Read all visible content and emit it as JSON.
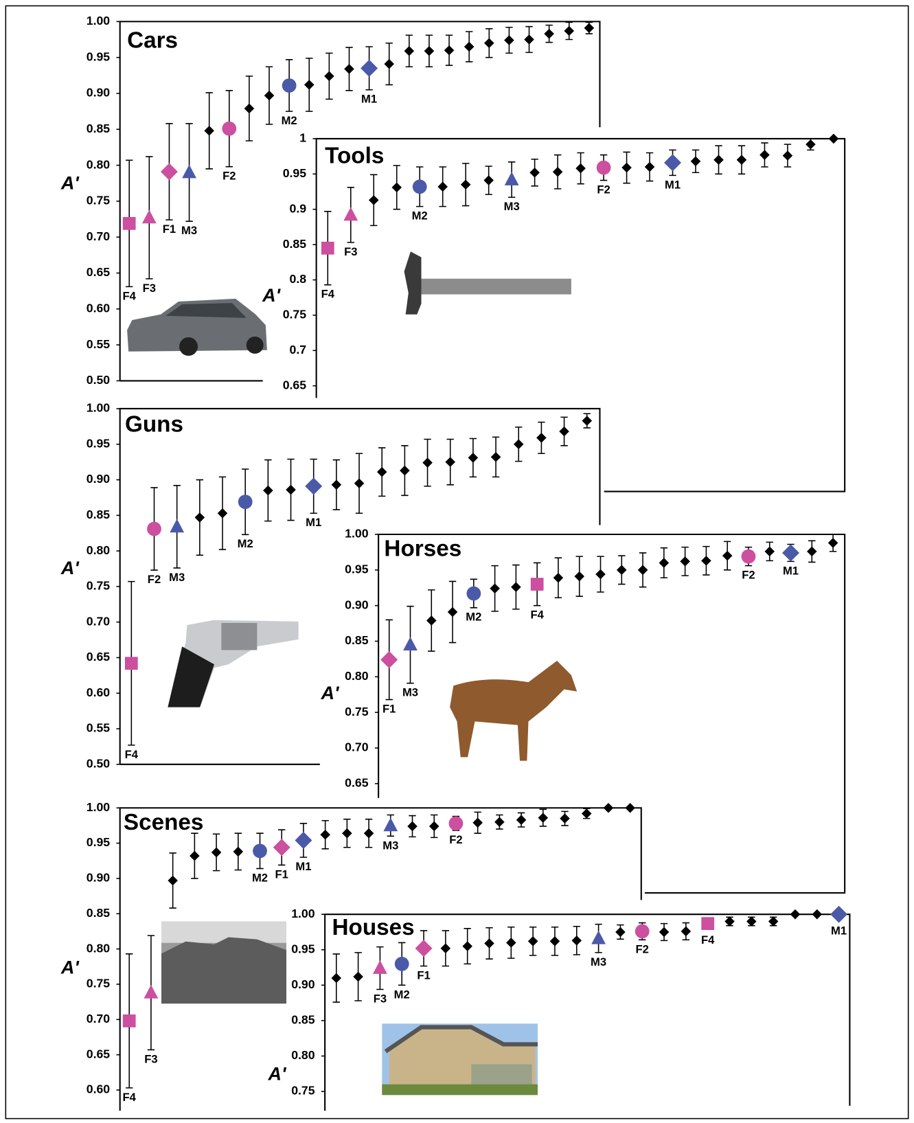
{
  "chart_data": [
    {
      "type": "scatter",
      "title": "Cars",
      "y_label": "A'",
      "marker_color": "#000000",
      "ylim": [
        0.5,
        1.0
      ],
      "yticks": [
        {
          "value": 1.0,
          "label": "1.00"
        },
        {
          "value": 0.95,
          "label": "0.95"
        },
        {
          "value": 0.9,
          "label": "0.90"
        },
        {
          "value": 0.85,
          "label": "0.85"
        },
        {
          "value": 0.8,
          "label": "0.80"
        },
        {
          "value": 0.75,
          "label": "0.75"
        },
        {
          "value": 0.7,
          "label": "0.70"
        },
        {
          "value": 0.65,
          "label": "0.65"
        },
        {
          "value": 0.6,
          "label": "0.60"
        },
        {
          "value": 0.55,
          "label": "0.55"
        },
        {
          "value": 0.5,
          "label": "0.50"
        }
      ],
      "values": [
        0.719,
        0.727,
        0.791,
        0.79,
        0.848,
        0.851,
        0.879,
        0.897,
        0.911,
        0.912,
        0.924,
        0.934,
        0.935,
        0.941,
        0.959,
        0.959,
        0.96,
        0.965,
        0.97,
        0.974,
        0.975,
        0.983,
        0.987,
        0.991
      ],
      "errors": [
        0.088,
        0.085,
        0.067,
        0.068,
        0.053,
        0.053,
        0.045,
        0.04,
        0.036,
        0.037,
        0.032,
        0.03,
        0.03,
        0.029,
        0.022,
        0.022,
        0.021,
        0.021,
        0.02,
        0.018,
        0.018,
        0.012,
        0.012,
        0.008
      ],
      "highlights": [
        {
          "index": 0,
          "label": "F4",
          "marker": "square",
          "color": "#cc4fa0"
        },
        {
          "index": 1,
          "label": "F3",
          "marker": "triangle",
          "color": "#cc4fa0"
        },
        {
          "index": 2,
          "label": "F1",
          "marker": "diamond",
          "color": "#cc4fa0"
        },
        {
          "index": 3,
          "label": "M3",
          "marker": "triangle",
          "color": "#4a5aa8"
        },
        {
          "index": 5,
          "label": "F2",
          "marker": "circle",
          "color": "#cc4fa0"
        },
        {
          "index": 8,
          "label": "M2",
          "marker": "circle",
          "color": "#4a5aa8"
        },
        {
          "index": 12,
          "label": "M1",
          "marker": "diamond",
          "color": "#4a5aa8"
        }
      ]
    },
    {
      "type": "scatter",
      "title": "Tools",
      "y_label": "A'",
      "marker_color": "#000000",
      "ylim": [
        0.65,
        1.0
      ],
      "yticks": [
        1,
        0.95,
        0.9,
        0.85,
        0.8,
        0.75,
        0.7,
        0.65
      ],
      "values": [
        0.845,
        0.892,
        0.913,
        0.931,
        0.932,
        0.932,
        0.935,
        0.941,
        0.942,
        0.952,
        0.953,
        0.958,
        0.959,
        0.959,
        0.96,
        0.966,
        0.968,
        0.97,
        0.97,
        0.977,
        0.976,
        0.992,
        1.0
      ],
      "errors": [
        0.052,
        0.039,
        0.036,
        0.031,
        0.028,
        0.028,
        0.03,
        0.02,
        0.025,
        0.019,
        0.024,
        0.022,
        0.018,
        0.022,
        0.02,
        0.018,
        0.016,
        0.02,
        0.02,
        0.017,
        0.016,
        0.008,
        0
      ],
      "highlights": [
        {
          "index": 0,
          "label": "F4",
          "marker": "square",
          "color": "#cc4fa0"
        },
        {
          "index": 1,
          "label": "F3",
          "marker": "triangle",
          "color": "#cc4fa0"
        },
        {
          "index": 4,
          "label": "M2",
          "marker": "circle",
          "color": "#4a5aa8"
        },
        {
          "index": 8,
          "label": "M3",
          "marker": "triangle",
          "color": "#4a5aa8"
        },
        {
          "index": 12,
          "label": "F2",
          "marker": "circle",
          "color": "#cc4fa0"
        },
        {
          "index": 15,
          "label": "M1",
          "marker": "diamond",
          "color": "#4a5aa8"
        }
      ]
    },
    {
      "type": "scatter",
      "title": "Guns",
      "y_label": "A'",
      "marker_color": "#000000",
      "ylim": [
        0.5,
        1.0
      ],
      "yticks": [
        {
          "value": 1.0,
          "label": "1.00"
        },
        {
          "value": 0.95,
          "label": "0.95"
        },
        {
          "value": 0.9,
          "label": "0.90"
        },
        {
          "value": 0.85,
          "label": "0.85"
        },
        {
          "value": 0.8,
          "label": "0.80"
        },
        {
          "value": 0.75,
          "label": "0.75"
        },
        {
          "value": 0.7,
          "label": "0.70"
        },
        {
          "value": 0.65,
          "label": "0.65"
        },
        {
          "value": 0.6,
          "label": "0.60"
        },
        {
          "value": 0.55,
          "label": "0.55"
        },
        {
          "value": 0.5,
          "label": "0.50"
        }
      ],
      "values": [
        0.642,
        0.831,
        0.834,
        0.847,
        0.853,
        0.869,
        0.885,
        0.886,
        0.891,
        0.893,
        0.895,
        0.911,
        0.913,
        0.924,
        0.925,
        0.931,
        0.932,
        0.95,
        0.959,
        0.968,
        0.983
      ],
      "errors": [
        0.115,
        0.058,
        0.058,
        0.053,
        0.051,
        0.046,
        0.043,
        0.043,
        0.038,
        0.035,
        0.042,
        0.034,
        0.035,
        0.033,
        0.032,
        0.027,
        0.028,
        0.024,
        0.022,
        0.02,
        0.01
      ],
      "highlights": [
        {
          "index": 0,
          "label": "F4",
          "marker": "square",
          "color": "#cc4fa0"
        },
        {
          "index": 1,
          "label": "F2",
          "marker": "circle",
          "color": "#cc4fa0"
        },
        {
          "index": 2,
          "label": "M3",
          "marker": "triangle",
          "color": "#4a5aa8"
        },
        {
          "index": 5,
          "label": "M2",
          "marker": "circle",
          "color": "#4a5aa8"
        },
        {
          "index": 8,
          "label": "M1",
          "marker": "diamond",
          "color": "#4a5aa8"
        }
      ]
    },
    {
      "type": "scatter",
      "title": "Horses",
      "y_label": "A'",
      "marker_color": "#000000",
      "ylim": [
        0.65,
        1.0
      ],
      "yticks": [
        {
          "value": 1.0,
          "label": "1.00"
        },
        {
          "value": 0.95,
          "label": "0.95"
        },
        {
          "value": 0.9,
          "label": "0.90"
        },
        {
          "value": 0.85,
          "label": "0.85"
        },
        {
          "value": 0.8,
          "label": "0.80"
        },
        {
          "value": 0.75,
          "label": "0.75"
        },
        {
          "value": 0.7,
          "label": "0.70"
        },
        {
          "value": 0.65,
          "label": "0.65"
        }
      ],
      "values": [
        0.824,
        0.845,
        0.879,
        0.891,
        0.917,
        0.924,
        0.926,
        0.93,
        0.939,
        0.941,
        0.944,
        0.95,
        0.95,
        0.96,
        0.962,
        0.963,
        0.97,
        0.969,
        0.976,
        0.974,
        0.976,
        0.988
      ],
      "errors": [
        0.056,
        0.054,
        0.043,
        0.043,
        0.02,
        0.032,
        0.031,
        0.03,
        0.028,
        0.028,
        0.025,
        0.02,
        0.024,
        0.021,
        0.02,
        0.02,
        0.02,
        0.013,
        0.013,
        0.012,
        0.015,
        0.012
      ],
      "highlights": [
        {
          "index": 0,
          "label": "F1",
          "marker": "diamond",
          "color": "#cc4fa0"
        },
        {
          "index": 1,
          "label": "M3",
          "marker": "triangle",
          "color": "#4a5aa8"
        },
        {
          "index": 4,
          "label": "M2",
          "marker": "circle",
          "color": "#4a5aa8"
        },
        {
          "index": 7,
          "label": "F4",
          "marker": "square",
          "color": "#cc4fa0"
        },
        {
          "index": 17,
          "label": "F2",
          "marker": "circle",
          "color": "#cc4fa0"
        },
        {
          "index": 19,
          "label": "M1",
          "marker": "diamond",
          "color": "#4a5aa8"
        }
      ]
    },
    {
      "type": "scatter",
      "title": "Scenes",
      "y_label": "A'",
      "marker_color": "#000000",
      "ylim": [
        0.6,
        1.0
      ],
      "yticks": [
        {
          "value": 1.0,
          "label": "1.00"
        },
        {
          "value": 0.95,
          "label": "0.95"
        },
        {
          "value": 0.9,
          "label": "0.90"
        },
        {
          "value": 0.85,
          "label": "0.85"
        },
        {
          "value": 0.8,
          "label": "0.80"
        },
        {
          "value": 0.75,
          "label": "0.75"
        },
        {
          "value": 0.7,
          "label": "0.70"
        },
        {
          "value": 0.65,
          "label": "0.65"
        },
        {
          "value": 0.6,
          "label": "0.60"
        }
      ],
      "values": [
        0.698,
        0.738,
        0.897,
        0.932,
        0.937,
        0.938,
        0.939,
        0.944,
        0.954,
        0.962,
        0.964,
        0.964,
        0.975,
        0.974,
        0.974,
        0.978,
        0.979,
        0.98,
        0.983,
        0.986,
        0.985,
        0.992,
        1.0,
        1.0
      ],
      "errors": [
        0.095,
        0.081,
        0.039,
        0.032,
        0.026,
        0.026,
        0.025,
        0.025,
        0.024,
        0.02,
        0.02,
        0.02,
        0.015,
        0.015,
        0.016,
        0.01,
        0.015,
        0.01,
        0.01,
        0.012,
        0.01,
        0.007,
        0,
        0
      ],
      "highlights": [
        {
          "index": 0,
          "label": "F4",
          "marker": "square",
          "color": "#cc4fa0"
        },
        {
          "index": 1,
          "label": "F3",
          "marker": "triangle",
          "color": "#cc4fa0"
        },
        {
          "index": 6,
          "label": "M2",
          "marker": "circle",
          "color": "#4a5aa8"
        },
        {
          "index": 7,
          "label": "F1",
          "marker": "diamond",
          "color": "#cc4fa0"
        },
        {
          "index": 8,
          "label": "M1",
          "marker": "diamond",
          "color": "#4a5aa8"
        },
        {
          "index": 12,
          "label": "M3",
          "marker": "triangle",
          "color": "#4a5aa8"
        },
        {
          "index": 15,
          "label": "F2",
          "marker": "circle",
          "color": "#cc4fa0"
        }
      ]
    },
    {
      "type": "scatter",
      "title": "Houses",
      "y_label": "A'",
      "marker_color": "#000000",
      "ylim": [
        0.75,
        1.0
      ],
      "yticks": [
        {
          "value": 1.0,
          "label": "1.00"
        },
        {
          "value": 0.95,
          "label": "0.95"
        },
        {
          "value": 0.9,
          "label": "0.90"
        },
        {
          "value": 0.85,
          "label": "0.85"
        },
        {
          "value": 0.8,
          "label": "0.80"
        },
        {
          "value": 0.75,
          "label": "0.75"
        }
      ],
      "values": [
        0.91,
        0.912,
        0.924,
        0.93,
        0.952,
        0.952,
        0.955,
        0.959,
        0.96,
        0.962,
        0.962,
        0.963,
        0.966,
        0.975,
        0.976,
        0.975,
        0.976,
        0.987,
        0.99,
        0.99,
        0.99,
        1.0,
        1.0,
        1.0
      ],
      "errors": [
        0.034,
        0.034,
        0.03,
        0.03,
        0.025,
        0.025,
        0.025,
        0.022,
        0.022,
        0.02,
        0.02,
        0.02,
        0.02,
        0.01,
        0.012,
        0.012,
        0.012,
        0.008,
        0.006,
        0.006,
        0.006,
        0,
        0,
        0
      ],
      "highlights": [
        {
          "index": 2,
          "label": "F3",
          "marker": "triangle",
          "color": "#cc4fa0"
        },
        {
          "index": 3,
          "label": "M2",
          "marker": "circle",
          "color": "#4a5aa8"
        },
        {
          "index": 4,
          "label": "F1",
          "marker": "diamond",
          "color": "#cc4fa0"
        },
        {
          "index": 12,
          "label": "M3",
          "marker": "triangle",
          "color": "#4a5aa8"
        },
        {
          "index": 14,
          "label": "F2",
          "marker": "circle",
          "color": "#cc4fa0"
        },
        {
          "index": 17,
          "label": "F4",
          "marker": "square",
          "color": "#cc4fa0"
        },
        {
          "index": 23,
          "label": "M1",
          "marker": "diamond",
          "color": "#4a5aa8"
        }
      ]
    }
  ]
}
